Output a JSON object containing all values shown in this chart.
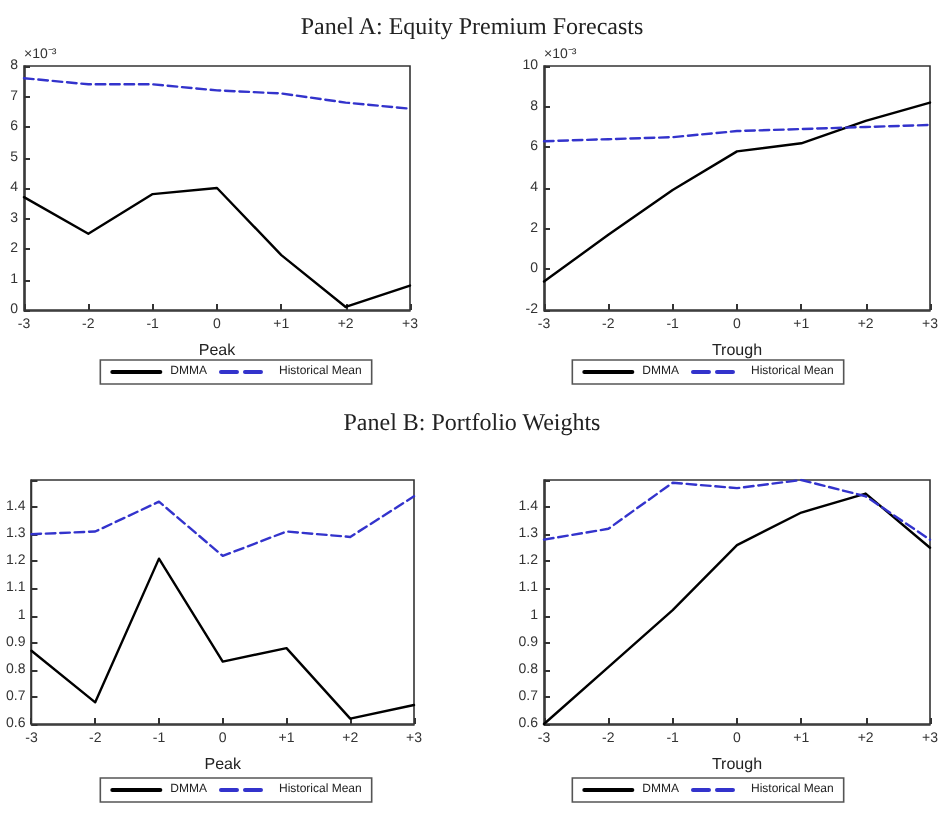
{
  "chart_data": [
    {
      "type": "line",
      "title": "Panel A: Equity Premium Forecasts",
      "xlabel": "Peak",
      "categories": [
        "-3",
        "-2",
        "-1",
        "0",
        "+1",
        "+2",
        "+3"
      ],
      "ylim": [
        0,
        8
      ],
      "yticks": [
        0,
        1,
        2,
        3,
        4,
        5,
        6,
        7,
        8
      ],
      "annotations": [
        "×10⁻³"
      ],
      "grid": false,
      "legend": "bottom",
      "marker": "none",
      "series": [
        {
          "name": "DMMA",
          "color": "#000000",
          "line_style": "solid",
          "values": [
            3.7,
            2.5,
            3.8,
            4.0,
            1.8,
            0.1,
            0.8
          ]
        },
        {
          "name": "Historical Mean",
          "color": "#3333cc",
          "line_style": "dashed",
          "values": [
            7.6,
            7.4,
            7.4,
            7.2,
            7.1,
            6.8,
            6.6
          ]
        }
      ]
    },
    {
      "type": "line",
      "xlabel": "Trough",
      "categories": [
        "-3",
        "-2",
        "-1",
        "0",
        "+1",
        "+2",
        "+3"
      ],
      "ylim": [
        -2,
        10
      ],
      "yticks": [
        -2,
        0,
        2,
        4,
        6,
        8,
        10
      ],
      "annotations": [
        "×10⁻³"
      ],
      "grid": false,
      "legend": "bottom",
      "marker": "none",
      "series": [
        {
          "name": "DMMA",
          "color": "#000000",
          "line_style": "solid",
          "values": [
            -0.6,
            1.7,
            3.9,
            5.8,
            6.2,
            7.3,
            8.2
          ]
        },
        {
          "name": "Historical Mean",
          "color": "#3333cc",
          "line_style": "dashed",
          "values": [
            6.3,
            6.4,
            6.5,
            6.8,
            6.9,
            7.0,
            7.1
          ]
        }
      ]
    },
    {
      "type": "line",
      "title": "Panel B: Portfolio Weights",
      "xlabel": "Peak",
      "categories": [
        "-3",
        "-2",
        "-1",
        "0",
        "+1",
        "+2",
        "+3"
      ],
      "ylim": [
        0.6,
        1.5
      ],
      "yticks": [
        0.6,
        0.7,
        0.8,
        0.9,
        1,
        1.1,
        1.2,
        1.3,
        1.4,
        {
          "value": 1.5,
          "label": null
        }
      ],
      "grid": false,
      "legend": "bottom",
      "marker": "none",
      "series": [
        {
          "name": "DMMA",
          "color": "#000000",
          "line_style": "solid",
          "values": [
            0.87,
            0.68,
            1.21,
            0.83,
            0.88,
            0.62,
            0.67
          ]
        },
        {
          "name": "Historical Mean",
          "color": "#3333cc",
          "line_style": "dashed",
          "values": [
            1.3,
            1.31,
            1.42,
            1.22,
            1.31,
            1.29,
            1.44
          ]
        }
      ]
    },
    {
      "type": "line",
      "xlabel": "Trough",
      "categories": [
        "-3",
        "-2",
        "-1",
        "0",
        "+1",
        "+2",
        "+3"
      ],
      "ylim": [
        0.6,
        1.5
      ],
      "yticks": [
        0.6,
        0.7,
        0.8,
        0.9,
        1,
        1.1,
        1.2,
        1.3,
        1.4,
        {
          "value": 1.5,
          "label": null
        }
      ],
      "grid": false,
      "legend": "bottom",
      "marker": "none",
      "series": [
        {
          "name": "DMMA",
          "color": "#000000",
          "line_style": "solid",
          "values": [
            0.6,
            0.81,
            1.02,
            1.26,
            1.38,
            1.45,
            1.25
          ]
        },
        {
          "name": "Historical Mean",
          "color": "#3333cc",
          "line_style": "dashed",
          "values": [
            1.28,
            1.32,
            1.49,
            1.47,
            1.5,
            1.44,
            1.28
          ]
        }
      ]
    }
  ]
}
